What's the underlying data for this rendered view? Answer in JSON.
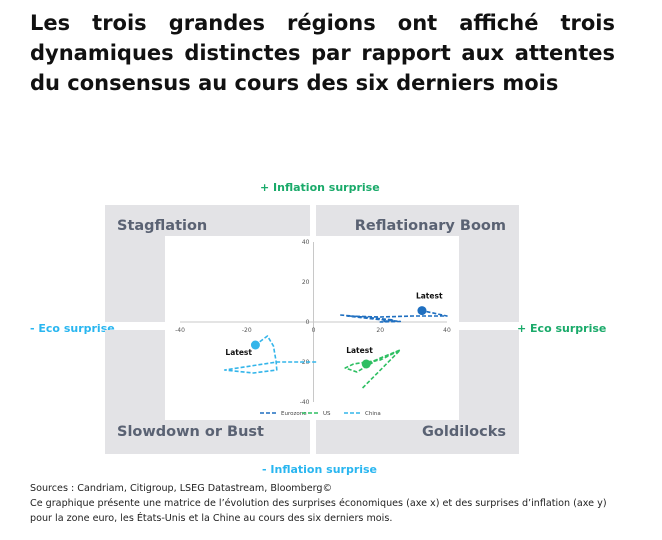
{
  "title": "Les trois grandes régions ont affiché trois dynamiques distinctes par rapport aux attentes du consensus au cours des six derniers mois",
  "axis_labels": {
    "top": "+ Inflation surprise",
    "bottom": "- Inflation surprise",
    "left": "- Eco surprise",
    "right": "+ Eco surprise"
  },
  "quadrants": {
    "top_left": "Stagflation",
    "top_right": "Reflationary Boom",
    "bottom_left": "Slowdown or Bust",
    "bottom_right": "Goldilocks"
  },
  "colors": {
    "top_axis": "#1aaa6a",
    "bottom_axis": "#29b6f0",
    "left_axis": "#29b6f0",
    "right_axis": "#1aaa6a"
  },
  "chart_data": {
    "type": "line",
    "xlim": [
      -40,
      40
    ],
    "ylim": [
      -40,
      40
    ],
    "xticks": [
      -40,
      -20,
      0,
      20,
      40
    ],
    "yticks": [
      40,
      20,
      0,
      -20,
      -40
    ],
    "grid": false,
    "legend": "bottom",
    "point_label": "Latest",
    "series": [
      {
        "name": "Eurozone",
        "color": "#1f6fc0",
        "points": [
          [
            8,
            3.5
          ],
          [
            15,
            2.5
          ],
          [
            24,
            1
          ],
          [
            20,
            0
          ],
          [
            26,
            0.3
          ],
          [
            18,
            1.5
          ],
          [
            10,
            3
          ],
          [
            20,
            2.5
          ],
          [
            30,
            3
          ],
          [
            40,
            3
          ],
          [
            32.5,
            5.7
          ]
        ]
      },
      {
        "name": "US",
        "color": "#2ebf62",
        "points": [
          [
            14.7,
            -33
          ],
          [
            26,
            -14
          ],
          [
            20,
            -18
          ],
          [
            13,
            -25
          ],
          [
            9.5,
            -23
          ],
          [
            12,
            -21
          ],
          [
            20,
            -19
          ],
          [
            26,
            -14
          ],
          [
            15.8,
            -21
          ]
        ]
      },
      {
        "name": "China",
        "color": "#33b5ea",
        "points": [
          [
            0.8,
            -20
          ],
          [
            -11,
            -20
          ],
          [
            -26.6,
            -24
          ],
          [
            -18,
            -25.5
          ],
          [
            -11,
            -24
          ],
          [
            -11.2,
            -19.8
          ],
          [
            -12,
            -12
          ],
          [
            -13.8,
            -7
          ],
          [
            -17.4,
            -11.5
          ]
        ]
      }
    ]
  },
  "sources": "Sources : Candriam, Citigroup, LSEG Datastream, Bloomberg©",
  "caption_line1": "Ce graphique présente une matrice de l’évolution des surprises économiques (axe x) et des surprises d’inflation (axe y)",
  "caption_line2": "pour la zone euro, les États-Unis et la Chine au cours des six derniers mois."
}
